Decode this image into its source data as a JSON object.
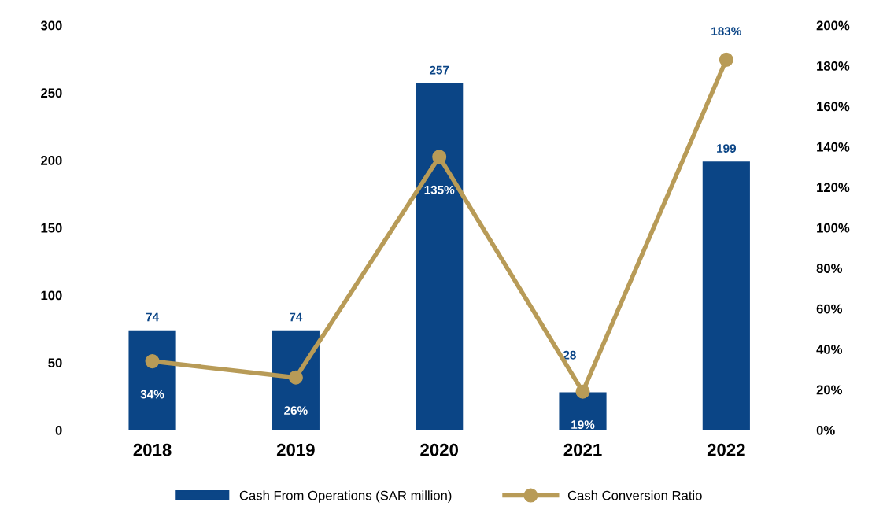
{
  "chart_data": {
    "type": "bar",
    "categories": [
      "2018",
      "2019",
      "2020",
      "2021",
      "2022"
    ],
    "series": [
      {
        "name": "Cash From Operations (SAR million)",
        "color": "#0b4586",
        "values": [
          74,
          74,
          257,
          28,
          199
        ],
        "value_labels": [
          "74",
          "74",
          "257",
          "28",
          "199"
        ]
      },
      {
        "name": "Cash Conversion Ratio",
        "type": "line",
        "axis": "y2",
        "color": "#b89b57",
        "marker": "circle",
        "values": [
          34,
          26,
          135,
          19,
          183
        ],
        "value_labels": [
          "34%",
          "26%",
          "135%",
          "19%",
          "183%"
        ]
      }
    ],
    "ylim": [
      0,
      300
    ],
    "yticks": [
      0,
      50,
      100,
      150,
      200,
      250,
      300
    ],
    "y2lim": [
      0,
      200
    ],
    "y2ticks": [
      {
        "value": 0,
        "label": "0%"
      },
      {
        "value": 20,
        "label": "20%"
      },
      {
        "value": 40,
        "label": "40%"
      },
      {
        "value": 60,
        "label": "60%"
      },
      {
        "value": 80,
        "label": "80%"
      },
      {
        "value": 100,
        "label": "100%"
      },
      {
        "value": 120,
        "label": "120%"
      },
      {
        "value": 140,
        "label": "140%"
      },
      {
        "value": 160,
        "label": "160%"
      },
      {
        "value": 180,
        "label": "180%"
      },
      {
        "value": 200,
        "label": "200%"
      }
    ],
    "grid": false,
    "legend": "bottom"
  }
}
